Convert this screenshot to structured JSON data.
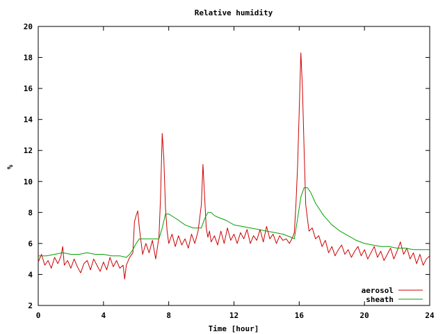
{
  "chart_data": {
    "type": "line",
    "title": "Relative humidity",
    "xlabel": "Time [hour]",
    "ylabel": "%",
    "xlim": [
      0,
      24
    ],
    "ylim": [
      2,
      20
    ],
    "xticks": [
      0,
      4,
      8,
      12,
      16,
      20,
      24
    ],
    "yticks": [
      2,
      4,
      6,
      8,
      10,
      12,
      14,
      16,
      18,
      20
    ],
    "grid": false,
    "legend_position": "bottom-right",
    "series": [
      {
        "name": "aerosol",
        "color": "#cc0000",
        "x": [
          0,
          0.2,
          0.4,
          0.6,
          0.8,
          1.0,
          1.2,
          1.4,
          1.5,
          1.6,
          1.8,
          2.0,
          2.2,
          2.4,
          2.6,
          2.8,
          3.0,
          3.2,
          3.4,
          3.6,
          3.8,
          4.0,
          4.2,
          4.4,
          4.6,
          4.8,
          5.0,
          5.2,
          5.3,
          5.4,
          5.6,
          5.8,
          5.9,
          6.0,
          6.1,
          6.2,
          6.4,
          6.6,
          6.8,
          7.0,
          7.2,
          7.4,
          7.5,
          7.6,
          7.7,
          7.8,
          7.9,
          8.0,
          8.2,
          8.4,
          8.6,
          8.8,
          9.0,
          9.2,
          9.4,
          9.6,
          9.8,
          10.0,
          10.1,
          10.2,
          10.3,
          10.4,
          10.5,
          10.6,
          10.8,
          11.0,
          11.2,
          11.4,
          11.6,
          11.8,
          12.0,
          12.2,
          12.4,
          12.6,
          12.8,
          13.0,
          13.2,
          13.4,
          13.6,
          13.8,
          14.0,
          14.2,
          14.4,
          14.6,
          14.8,
          15.0,
          15.2,
          15.4,
          15.6,
          15.7,
          15.8,
          15.9,
          16.0,
          16.1,
          16.2,
          16.3,
          16.4,
          16.6,
          16.8,
          17.0,
          17.2,
          17.4,
          17.6,
          17.8,
          18.0,
          18.2,
          18.4,
          18.6,
          18.8,
          19.0,
          19.2,
          19.4,
          19.6,
          19.8,
          20.0,
          20.2,
          20.4,
          20.6,
          20.8,
          21.0,
          21.2,
          21.4,
          21.6,
          21.8,
          22.0,
          22.2,
          22.4,
          22.6,
          22.8,
          23.0,
          23.2,
          23.4,
          23.6,
          23.8,
          24.0
        ],
        "y": [
          4.8,
          5.3,
          4.6,
          4.9,
          4.4,
          5.1,
          4.7,
          5.2,
          5.8,
          4.6,
          4.9,
          4.4,
          5.0,
          4.5,
          4.1,
          4.7,
          4.9,
          4.3,
          5.0,
          4.6,
          4.2,
          4.8,
          4.3,
          5.1,
          4.5,
          4.9,
          4.4,
          4.6,
          3.7,
          4.6,
          5.1,
          5.4,
          7.4,
          7.8,
          8.1,
          7.0,
          5.3,
          6.0,
          5.4,
          6.2,
          5.0,
          6.4,
          9.0,
          13.1,
          11.5,
          8.3,
          6.8,
          6.0,
          6.6,
          5.8,
          6.5,
          5.9,
          6.3,
          5.7,
          6.6,
          6.0,
          6.8,
          8.5,
          11.1,
          9.0,
          7.0,
          6.4,
          6.8,
          6.1,
          6.5,
          5.9,
          6.8,
          6.0,
          7.0,
          6.2,
          6.6,
          6.0,
          6.7,
          6.3,
          6.9,
          6.0,
          6.5,
          6.2,
          6.9,
          6.1,
          7.1,
          6.3,
          6.6,
          6.0,
          6.5,
          6.2,
          6.3,
          6.0,
          6.4,
          6.7,
          8.5,
          11.0,
          14.5,
          18.3,
          16.0,
          12.0,
          8.5,
          6.8,
          7.0,
          6.3,
          6.5,
          5.8,
          6.2,
          5.4,
          5.8,
          5.2,
          5.6,
          5.9,
          5.3,
          5.6,
          5.1,
          5.5,
          5.8,
          5.2,
          5.6,
          5.0,
          5.4,
          5.8,
          5.1,
          5.5,
          4.9,
          5.3,
          5.7,
          5.0,
          5.5,
          6.1,
          5.3,
          5.7,
          5.0,
          5.4,
          4.7,
          5.3,
          4.6,
          5.0,
          5.2
        ]
      },
      {
        "name": "sheath",
        "color": "#00a000",
        "x": [
          0,
          0.5,
          1.0,
          1.5,
          2.0,
          2.5,
          3.0,
          3.5,
          4.0,
          4.5,
          5.0,
          5.4,
          5.6,
          5.8,
          6.0,
          6.2,
          6.5,
          7.0,
          7.4,
          7.6,
          7.8,
          8.0,
          8.3,
          8.6,
          9.0,
          9.5,
          10.0,
          10.2,
          10.4,
          10.6,
          10.8,
          11.0,
          11.5,
          12.0,
          12.5,
          13.0,
          13.5,
          14.0,
          14.5,
          15.0,
          15.5,
          15.7,
          15.9,
          16.1,
          16.3,
          16.5,
          16.7,
          17.0,
          17.5,
          18.0,
          18.5,
          19.0,
          19.5,
          20.0,
          20.5,
          21.0,
          21.5,
          22.0,
          22.5,
          23.0,
          23.5,
          24.0
        ],
        "y": [
          5.2,
          5.2,
          5.3,
          5.4,
          5.3,
          5.3,
          5.4,
          5.3,
          5.3,
          5.2,
          5.2,
          5.1,
          5.3,
          5.6,
          6.0,
          6.3,
          6.3,
          6.3,
          6.3,
          7.0,
          7.9,
          7.9,
          7.7,
          7.5,
          7.2,
          7.0,
          7.0,
          7.6,
          8.0,
          8.0,
          7.8,
          7.7,
          7.5,
          7.2,
          7.1,
          7.0,
          6.9,
          6.8,
          6.7,
          6.6,
          6.4,
          6.3,
          7.6,
          9.0,
          9.6,
          9.6,
          9.3,
          8.6,
          7.8,
          7.2,
          6.8,
          6.5,
          6.2,
          6.0,
          5.9,
          5.8,
          5.8,
          5.7,
          5.7,
          5.6,
          5.6,
          5.6
        ]
      }
    ]
  }
}
